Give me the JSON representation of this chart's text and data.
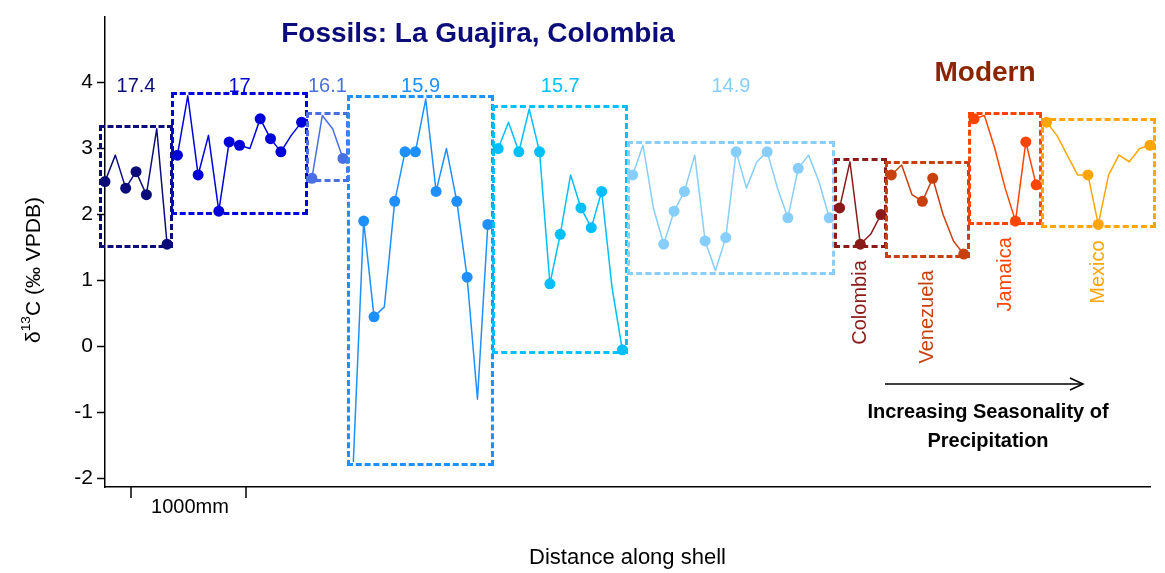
{
  "chart_data": {
    "type": "line",
    "xlabel": "Distance along shell",
    "ylabel": "δ$^{13}$C (‰ VPDB)",
    "ylim": [
      -2.13,
      5.0
    ],
    "yticks": [
      -2,
      -1,
      0,
      1,
      2,
      3,
      4
    ],
    "grid": false,
    "legend": false,
    "annotations": [
      "Fossils: La Guajira, Colombia",
      "Modern",
      "Increasing Seasonality of Precipitation",
      "1000mm"
    ],
    "categories": [
      null,
      null,
      null,
      null,
      null,
      null,
      null,
      null,
      null,
      null,
      null,
      null,
      null,
      null,
      null,
      null,
      null,
      null,
      null,
      null,
      null,
      null,
      null,
      null,
      null,
      null,
      null,
      null,
      null,
      null,
      null,
      null,
      null,
      null,
      null,
      null,
      null,
      null,
      null,
      null,
      null,
      null,
      null,
      null,
      null,
      null,
      null,
      null,
      null,
      null,
      null,
      null,
      null,
      null,
      null,
      null,
      null,
      null,
      null,
      null,
      null,
      null,
      null,
      null,
      null,
      null,
      null,
      null,
      null,
      null,
      null,
      null,
      null,
      null,
      null,
      null,
      null,
      null,
      null,
      null,
      null,
      null,
      null,
      null,
      null,
      null,
      null,
      null,
      null,
      null,
      null,
      null,
      null,
      null,
      null,
      null,
      null,
      null,
      null,
      null,
      null,
      null
    ],
    "series": [
      {
        "type": "line",
        "name": "17.4",
        "color": "#0b0b7a",
        "values": [
          2.5,
          2.9,
          2.4,
          2.65,
          2.3,
          3.3,
          1.55,
          null,
          null,
          null,
          null,
          null,
          null,
          null,
          null,
          null,
          null,
          null,
          null,
          null,
          null,
          null,
          null,
          null,
          null,
          null,
          null,
          null,
          null,
          null,
          null,
          null,
          null,
          null,
          null,
          null,
          null,
          null,
          null,
          null,
          null,
          null,
          null,
          null,
          null,
          null,
          null,
          null,
          null,
          null,
          null,
          null,
          null,
          null,
          null,
          null,
          null,
          null,
          null,
          null,
          null,
          null,
          null,
          null,
          null,
          null,
          null,
          null,
          null,
          null,
          null,
          null,
          null,
          null,
          null,
          null,
          null,
          null,
          null,
          null,
          null,
          null,
          null,
          null,
          null,
          null,
          null,
          null,
          null,
          null,
          null,
          null,
          null,
          null,
          null,
          null,
          null,
          null,
          null,
          null,
          null,
          null
        ]
      },
      {
        "type": "scatter",
        "marker": "circle",
        "color": "#0b0b7a",
        "values": [
          2.5,
          null,
          2.4,
          2.65,
          2.3,
          null,
          1.55,
          null,
          null,
          null,
          null,
          null,
          null,
          null,
          null,
          null,
          null,
          null,
          null,
          null,
          null,
          null,
          null,
          null,
          null,
          null,
          null,
          null,
          null,
          null,
          null,
          null,
          null,
          null,
          null,
          null,
          null,
          null,
          null,
          null,
          null,
          null,
          null,
          null,
          null,
          null,
          null,
          null,
          null,
          null,
          null,
          null,
          null,
          null,
          null,
          null,
          null,
          null,
          null,
          null,
          null,
          null,
          null,
          null,
          null,
          null,
          null,
          null,
          null,
          null,
          null,
          null,
          null,
          null,
          null,
          null,
          null,
          null,
          null,
          null,
          null,
          null,
          null,
          null,
          null,
          null,
          null,
          null,
          null,
          null,
          null,
          null,
          null,
          null,
          null,
          null,
          null,
          null,
          null,
          null,
          null,
          null
        ]
      },
      {
        "type": "line",
        "name": "17",
        "color": "#0000d8",
        "values": [
          null,
          null,
          null,
          null,
          null,
          null,
          null,
          2.9,
          3.8,
          2.6,
          3.2,
          2.05,
          3.1,
          3.05,
          3.0,
          3.45,
          3.15,
          2.95,
          3.2,
          3.4,
          null,
          null,
          null,
          null,
          null,
          null,
          null,
          null,
          null,
          null,
          null,
          null,
          null,
          null,
          null,
          null,
          null,
          null,
          null,
          null,
          null,
          null,
          null,
          null,
          null,
          null,
          null,
          null,
          null,
          null,
          null,
          null,
          null,
          null,
          null,
          null,
          null,
          null,
          null,
          null,
          null,
          null,
          null,
          null,
          null,
          null,
          null,
          null,
          null,
          null,
          null,
          null,
          null,
          null,
          null,
          null,
          null,
          null,
          null,
          null,
          null,
          null,
          null,
          null,
          null,
          null,
          null,
          null,
          null,
          null,
          null,
          null,
          null,
          null,
          null,
          null,
          null,
          null,
          null,
          null,
          null,
          null
        ]
      },
      {
        "type": "scatter",
        "marker": "circle",
        "color": "#0000d8",
        "values": [
          null,
          null,
          null,
          null,
          null,
          null,
          null,
          2.9,
          null,
          2.6,
          null,
          2.05,
          3.1,
          3.05,
          null,
          3.45,
          3.15,
          2.95,
          null,
          3.4,
          null,
          null,
          null,
          null,
          null,
          null,
          null,
          null,
          null,
          null,
          null,
          null,
          null,
          null,
          null,
          null,
          null,
          null,
          null,
          null,
          null,
          null,
          null,
          null,
          null,
          null,
          null,
          null,
          null,
          null,
          null,
          null,
          null,
          null,
          null,
          null,
          null,
          null,
          null,
          null,
          null,
          null,
          null,
          null,
          null,
          null,
          null,
          null,
          null,
          null,
          null,
          null,
          null,
          null,
          null,
          null,
          null,
          null,
          null,
          null,
          null,
          null,
          null,
          null,
          null,
          null,
          null,
          null,
          null,
          null,
          null,
          null,
          null,
          null,
          null,
          null,
          null,
          null,
          null,
          null,
          null,
          null
        ]
      },
      {
        "type": "line",
        "name": "16.1",
        "color": "#4a6fe3",
        "values": [
          null,
          null,
          null,
          null,
          null,
          null,
          null,
          null,
          null,
          null,
          null,
          null,
          null,
          null,
          null,
          null,
          null,
          null,
          null,
          null,
          2.55,
          3.5,
          3.3,
          2.85,
          null,
          null,
          null,
          null,
          null,
          null,
          null,
          null,
          null,
          null,
          null,
          null,
          null,
          null,
          null,
          null,
          null,
          null,
          null,
          null,
          null,
          null,
          null,
          null,
          null,
          null,
          null,
          null,
          null,
          null,
          null,
          null,
          null,
          null,
          null,
          null,
          null,
          null,
          null,
          null,
          null,
          null,
          null,
          null,
          null,
          null,
          null,
          null,
          null,
          null,
          null,
          null,
          null,
          null,
          null,
          null,
          null,
          null,
          null,
          null,
          null,
          null,
          null,
          null,
          null,
          null,
          null,
          null,
          null,
          null,
          null,
          null,
          null,
          null,
          null,
          null,
          null,
          null
        ]
      },
      {
        "type": "scatter",
        "marker": "circle",
        "color": "#4a6fe3",
        "values": [
          null,
          null,
          null,
          null,
          null,
          null,
          null,
          null,
          null,
          null,
          null,
          null,
          null,
          null,
          null,
          null,
          null,
          null,
          null,
          null,
          2.55,
          null,
          null,
          2.85,
          null,
          null,
          null,
          null,
          null,
          null,
          null,
          null,
          null,
          null,
          null,
          null,
          null,
          null,
          null,
          null,
          null,
          null,
          null,
          null,
          null,
          null,
          null,
          null,
          null,
          null,
          null,
          null,
          null,
          null,
          null,
          null,
          null,
          null,
          null,
          null,
          null,
          null,
          null,
          null,
          null,
          null,
          null,
          null,
          null,
          null,
          null,
          null,
          null,
          null,
          null,
          null,
          null,
          null,
          null,
          null,
          null,
          null,
          null,
          null,
          null,
          null,
          null,
          null,
          null,
          null,
          null,
          null,
          null,
          null,
          null,
          null,
          null,
          null,
          null,
          null,
          null,
          null
        ]
      },
      {
        "type": "line",
        "name": "15.9",
        "color": "#1e90ff",
        "values": [
          null,
          null,
          null,
          null,
          null,
          null,
          null,
          null,
          null,
          null,
          null,
          null,
          null,
          null,
          null,
          null,
          null,
          null,
          null,
          null,
          null,
          null,
          null,
          null,
          -1.75,
          1.9,
          0.45,
          0.6,
          2.2,
          2.95,
          2.95,
          3.75,
          2.35,
          3.0,
          2.2,
          1.05,
          -0.8,
          1.85,
          null,
          null,
          null,
          null,
          null,
          null,
          null,
          null,
          null,
          null,
          null,
          null,
          null,
          null,
          null,
          null,
          null,
          null,
          null,
          null,
          null,
          null,
          null,
          null,
          null,
          null,
          null,
          null,
          null,
          null,
          null,
          null,
          null,
          null,
          null,
          null,
          null,
          null,
          null,
          null,
          null,
          null,
          null,
          null,
          null,
          null,
          null,
          null,
          null,
          null,
          null,
          null,
          null,
          null,
          null,
          null,
          null,
          null,
          null,
          null,
          null,
          null,
          null,
          null
        ]
      },
      {
        "type": "scatter",
        "marker": "circle",
        "color": "#1e90ff",
        "values": [
          null,
          null,
          null,
          null,
          null,
          null,
          null,
          null,
          null,
          null,
          null,
          null,
          null,
          null,
          null,
          null,
          null,
          null,
          null,
          null,
          null,
          null,
          null,
          null,
          null,
          1.9,
          0.45,
          null,
          2.2,
          2.95,
          2.95,
          null,
          2.35,
          null,
          2.2,
          1.05,
          null,
          1.85,
          null,
          null,
          null,
          null,
          null,
          null,
          null,
          null,
          null,
          null,
          null,
          null,
          null,
          null,
          null,
          null,
          null,
          null,
          null,
          null,
          null,
          null,
          null,
          null,
          null,
          null,
          null,
          null,
          null,
          null,
          null,
          null,
          null,
          null,
          null,
          null,
          null,
          null,
          null,
          null,
          null,
          null,
          null,
          null,
          null,
          null,
          null,
          null,
          null,
          null,
          null,
          null,
          null,
          null,
          null,
          null,
          null,
          null,
          null,
          null,
          null,
          null,
          null,
          null
        ]
      },
      {
        "type": "line",
        "name": "15.7",
        "color": "#00bfff",
        "values": [
          null,
          null,
          null,
          null,
          null,
          null,
          null,
          null,
          null,
          null,
          null,
          null,
          null,
          null,
          null,
          null,
          null,
          null,
          null,
          null,
          null,
          null,
          null,
          null,
          null,
          null,
          null,
          null,
          null,
          null,
          null,
          null,
          null,
          null,
          null,
          null,
          null,
          null,
          3.0,
          3.4,
          2.95,
          3.6,
          2.95,
          0.95,
          1.7,
          2.6,
          2.1,
          1.8,
          2.35,
          0.9,
          -0.05,
          null,
          null,
          null,
          null,
          null,
          null,
          null,
          null,
          null,
          null,
          null,
          null,
          null,
          null,
          null,
          null,
          null,
          null,
          null,
          null,
          null,
          null,
          null,
          null,
          null,
          null,
          null,
          null,
          null,
          null,
          null,
          null,
          null,
          null,
          null,
          null,
          null,
          null,
          null,
          null,
          null,
          null,
          null,
          null,
          null,
          null,
          null,
          null,
          null,
          null,
          null
        ]
      },
      {
        "type": "scatter",
        "marker": "circle",
        "color": "#00bfff",
        "values": [
          null,
          null,
          null,
          null,
          null,
          null,
          null,
          null,
          null,
          null,
          null,
          null,
          null,
          null,
          null,
          null,
          null,
          null,
          null,
          null,
          null,
          null,
          null,
          null,
          null,
          null,
          null,
          null,
          null,
          null,
          null,
          null,
          null,
          null,
          null,
          null,
          null,
          null,
          3.0,
          null,
          2.95,
          null,
          2.95,
          0.95,
          1.7,
          null,
          2.1,
          1.8,
          2.35,
          null,
          -0.05,
          null,
          null,
          null,
          null,
          null,
          null,
          null,
          null,
          null,
          null,
          null,
          null,
          null,
          null,
          null,
          null,
          null,
          null,
          null,
          null,
          null,
          null,
          null,
          null,
          null,
          null,
          null,
          null,
          null,
          null,
          null,
          null,
          null,
          null,
          null,
          null,
          null,
          null,
          null,
          null,
          null,
          null,
          null,
          null,
          null,
          null,
          null,
          null,
          null,
          null,
          null
        ]
      },
      {
        "type": "line",
        "name": "14.9",
        "color": "#87cefa",
        "values": [
          null,
          null,
          null,
          null,
          null,
          null,
          null,
          null,
          null,
          null,
          null,
          null,
          null,
          null,
          null,
          null,
          null,
          null,
          null,
          null,
          null,
          null,
          null,
          null,
          null,
          null,
          null,
          null,
          null,
          null,
          null,
          null,
          null,
          null,
          null,
          null,
          null,
          null,
          null,
          null,
          null,
          null,
          null,
          null,
          null,
          null,
          null,
          null,
          null,
          null,
          null,
          2.6,
          3.05,
          2.1,
          1.55,
          2.05,
          2.35,
          2.9,
          1.6,
          1.15,
          1.65,
          2.95,
          2.4,
          2.8,
          2.95,
          2.4,
          1.95,
          2.7,
          2.9,
          2.5,
          1.95,
          null,
          null,
          null,
          null,
          null,
          null,
          null,
          null,
          null,
          null,
          null,
          null,
          null,
          null,
          null,
          null,
          null,
          null,
          null,
          null,
          null,
          null,
          null,
          null,
          null,
          null,
          null,
          null,
          null,
          null,
          null
        ]
      },
      {
        "type": "scatter",
        "marker": "circle",
        "color": "#87cefa",
        "values": [
          null,
          null,
          null,
          null,
          null,
          null,
          null,
          null,
          null,
          null,
          null,
          null,
          null,
          null,
          null,
          null,
          null,
          null,
          null,
          null,
          null,
          null,
          null,
          null,
          null,
          null,
          null,
          null,
          null,
          null,
          null,
          null,
          null,
          null,
          null,
          null,
          null,
          null,
          null,
          null,
          null,
          null,
          null,
          null,
          null,
          null,
          null,
          null,
          null,
          null,
          null,
          2.6,
          null,
          null,
          1.55,
          2.05,
          2.35,
          null,
          1.6,
          null,
          1.65,
          2.95,
          null,
          null,
          2.95,
          null,
          1.95,
          2.7,
          null,
          null,
          1.95,
          null,
          null,
          null,
          null,
          null,
          null,
          null,
          null,
          null,
          null,
          null,
          null,
          null,
          null,
          null,
          null,
          null,
          null,
          null,
          null,
          null,
          null,
          null,
          null,
          null,
          null,
          null,
          null,
          null,
          null,
          null
        ]
      },
      {
        "type": "line",
        "name": "Colombia",
        "color": "#8b1a1a",
        "values": [
          null,
          null,
          null,
          null,
          null,
          null,
          null,
          null,
          null,
          null,
          null,
          null,
          null,
          null,
          null,
          null,
          null,
          null,
          null,
          null,
          null,
          null,
          null,
          null,
          null,
          null,
          null,
          null,
          null,
          null,
          null,
          null,
          null,
          null,
          null,
          null,
          null,
          null,
          null,
          null,
          null,
          null,
          null,
          null,
          null,
          null,
          null,
          null,
          null,
          null,
          null,
          null,
          null,
          null,
          null,
          null,
          null,
          null,
          null,
          null,
          null,
          null,
          null,
          null,
          null,
          null,
          null,
          null,
          null,
          null,
          null,
          2.1,
          2.8,
          1.55,
          1.7,
          2.0,
          null,
          null,
          null,
          null,
          null,
          null,
          null,
          null,
          null,
          null,
          null,
          null,
          null,
          null,
          null,
          null,
          null,
          null,
          null,
          null,
          null,
          null,
          null,
          null,
          null,
          null
        ]
      },
      {
        "type": "scatter",
        "marker": "circle",
        "color": "#8b1a1a",
        "values": [
          null,
          null,
          null,
          null,
          null,
          null,
          null,
          null,
          null,
          null,
          null,
          null,
          null,
          null,
          null,
          null,
          null,
          null,
          null,
          null,
          null,
          null,
          null,
          null,
          null,
          null,
          null,
          null,
          null,
          null,
          null,
          null,
          null,
          null,
          null,
          null,
          null,
          null,
          null,
          null,
          null,
          null,
          null,
          null,
          null,
          null,
          null,
          null,
          null,
          null,
          null,
          null,
          null,
          null,
          null,
          null,
          null,
          null,
          null,
          null,
          null,
          null,
          null,
          null,
          null,
          null,
          null,
          null,
          null,
          null,
          null,
          2.1,
          null,
          1.55,
          null,
          2.0,
          null,
          null,
          null,
          null,
          null,
          null,
          null,
          null,
          null,
          null,
          null,
          null,
          null,
          null,
          null,
          null,
          null,
          null,
          null,
          null,
          null,
          null,
          null,
          null,
          null,
          null
        ]
      },
      {
        "type": "line",
        "name": "Venezuela",
        "color": "#c8400f",
        "values": [
          null,
          null,
          null,
          null,
          null,
          null,
          null,
          null,
          null,
          null,
          null,
          null,
          null,
          null,
          null,
          null,
          null,
          null,
          null,
          null,
          null,
          null,
          null,
          null,
          null,
          null,
          null,
          null,
          null,
          null,
          null,
          null,
          null,
          null,
          null,
          null,
          null,
          null,
          null,
          null,
          null,
          null,
          null,
          null,
          null,
          null,
          null,
          null,
          null,
          null,
          null,
          null,
          null,
          null,
          null,
          null,
          null,
          null,
          null,
          null,
          null,
          null,
          null,
          null,
          null,
          null,
          null,
          null,
          null,
          null,
          null,
          null,
          null,
          null,
          null,
          null,
          2.6,
          2.75,
          2.3,
          2.2,
          2.55,
          2.0,
          1.6,
          1.4,
          null,
          null,
          null,
          null,
          null,
          null,
          null,
          null,
          null,
          null,
          null,
          null,
          null,
          null,
          null,
          null,
          null,
          null
        ]
      },
      {
        "type": "scatter",
        "marker": "circle",
        "color": "#c8400f",
        "values": [
          null,
          null,
          null,
          null,
          null,
          null,
          null,
          null,
          null,
          null,
          null,
          null,
          null,
          null,
          null,
          null,
          null,
          null,
          null,
          null,
          null,
          null,
          null,
          null,
          null,
          null,
          null,
          null,
          null,
          null,
          null,
          null,
          null,
          null,
          null,
          null,
          null,
          null,
          null,
          null,
          null,
          null,
          null,
          null,
          null,
          null,
          null,
          null,
          null,
          null,
          null,
          null,
          null,
          null,
          null,
          null,
          null,
          null,
          null,
          null,
          null,
          null,
          null,
          null,
          null,
          null,
          null,
          null,
          null,
          null,
          null,
          null,
          null,
          null,
          null,
          null,
          2.6,
          null,
          null,
          2.2,
          2.55,
          null,
          null,
          1.4,
          null,
          null,
          null,
          null,
          null,
          null,
          null,
          null,
          null,
          null,
          null,
          null,
          null,
          null,
          null,
          null,
          null,
          null
        ]
      },
      {
        "type": "line",
        "name": "Jamaica",
        "color": "#ff4500",
        "values": [
          null,
          null,
          null,
          null,
          null,
          null,
          null,
          null,
          null,
          null,
          null,
          null,
          null,
          null,
          null,
          null,
          null,
          null,
          null,
          null,
          null,
          null,
          null,
          null,
          null,
          null,
          null,
          null,
          null,
          null,
          null,
          null,
          null,
          null,
          null,
          null,
          null,
          null,
          null,
          null,
          null,
          null,
          null,
          null,
          null,
          null,
          null,
          null,
          null,
          null,
          null,
          null,
          null,
          null,
          null,
          null,
          null,
          null,
          null,
          null,
          null,
          null,
          null,
          null,
          null,
          null,
          null,
          null,
          null,
          null,
          null,
          null,
          null,
          null,
          null,
          null,
          null,
          null,
          null,
          null,
          null,
          null,
          null,
          null,
          3.45,
          3.5,
          3.0,
          2.4,
          1.9,
          3.1,
          2.45,
          null,
          null,
          null,
          null,
          null,
          null,
          null,
          null,
          null,
          null,
          null
        ]
      },
      {
        "type": "scatter",
        "marker": "circle",
        "color": "#ff4500",
        "values": [
          null,
          null,
          null,
          null,
          null,
          null,
          null,
          null,
          null,
          null,
          null,
          null,
          null,
          null,
          null,
          null,
          null,
          null,
          null,
          null,
          null,
          null,
          null,
          null,
          null,
          null,
          null,
          null,
          null,
          null,
          null,
          null,
          null,
          null,
          null,
          null,
          null,
          null,
          null,
          null,
          null,
          null,
          null,
          null,
          null,
          null,
          null,
          null,
          null,
          null,
          null,
          null,
          null,
          null,
          null,
          null,
          null,
          null,
          null,
          null,
          null,
          null,
          null,
          null,
          null,
          null,
          null,
          null,
          null,
          null,
          null,
          null,
          null,
          null,
          null,
          null,
          null,
          null,
          null,
          null,
          null,
          null,
          null,
          null,
          3.45,
          null,
          null,
          null,
          1.9,
          3.1,
          2.45,
          null,
          null,
          null,
          null,
          null,
          null,
          null,
          null,
          null,
          null,
          null
        ]
      },
      {
        "type": "line",
        "name": "Mexico",
        "color": "#ffa500",
        "values": [
          null,
          null,
          null,
          null,
          null,
          null,
          null,
          null,
          null,
          null,
          null,
          null,
          null,
          null,
          null,
          null,
          null,
          null,
          null,
          null,
          null,
          null,
          null,
          null,
          null,
          null,
          null,
          null,
          null,
          null,
          null,
          null,
          null,
          null,
          null,
          null,
          null,
          null,
          null,
          null,
          null,
          null,
          null,
          null,
          null,
          null,
          null,
          null,
          null,
          null,
          null,
          null,
          null,
          null,
          null,
          null,
          null,
          null,
          null,
          null,
          null,
          null,
          null,
          null,
          null,
          null,
          null,
          null,
          null,
          null,
          null,
          null,
          null,
          null,
          null,
          null,
          null,
          null,
          null,
          null,
          null,
          null,
          null,
          null,
          null,
          null,
          null,
          null,
          null,
          null,
          null,
          3.4,
          3.2,
          2.9,
          2.6,
          2.6,
          1.85,
          2.6,
          2.9,
          2.8,
          3.0,
          3.05
        ]
      },
      {
        "type": "scatter",
        "marker": "circle",
        "color": "#ffa500",
        "values": [
          null,
          null,
          null,
          null,
          null,
          null,
          null,
          null,
          null,
          null,
          null,
          null,
          null,
          null,
          null,
          null,
          null,
          null,
          null,
          null,
          null,
          null,
          null,
          null,
          null,
          null,
          null,
          null,
          null,
          null,
          null,
          null,
          null,
          null,
          null,
          null,
          null,
          null,
          null,
          null,
          null,
          null,
          null,
          null,
          null,
          null,
          null,
          null,
          null,
          null,
          null,
          null,
          null,
          null,
          null,
          null,
          null,
          null,
          null,
          null,
          null,
          null,
          null,
          null,
          null,
          null,
          null,
          null,
          null,
          null,
          null,
          null,
          null,
          null,
          null,
          null,
          null,
          null,
          null,
          null,
          null,
          null,
          null,
          null,
          null,
          null,
          null,
          null,
          null,
          null,
          null,
          3.4,
          null,
          null,
          null,
          2.6,
          1.85,
          null,
          null,
          null,
          null,
          3.05
        ]
      }
    ]
  }
}
